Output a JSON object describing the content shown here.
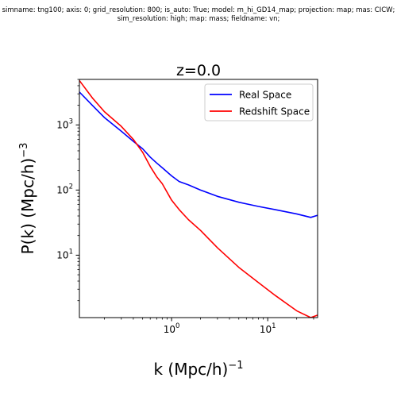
{
  "header": {
    "line1": "simname: tng100; axis: 0; grid_resolution: 800; is_auto: True; model: m_hi_GD14_map; projection: map; mas: CICW;",
    "line2": "sim_resolution: high; map: mass; fieldname: vn;"
  },
  "chart_data": {
    "type": "line",
    "title": "z=0.0",
    "xlabel": "k (Mpc/h)",
    "xlabel_exp": "−1",
    "ylabel": "P(k) (Mpc/h)",
    "ylabel_exp": "−3",
    "xscale": "log",
    "yscale": "log",
    "xlim": [
      0.11,
      33
    ],
    "ylim": [
      1.1,
      5000
    ],
    "xticks": [
      {
        "value": 1,
        "base": "10",
        "exp": "0"
      },
      {
        "value": 10,
        "base": "10",
        "exp": "1"
      }
    ],
    "yticks": [
      {
        "value": 10,
        "base": "10",
        "exp": "1"
      },
      {
        "value": 100,
        "base": "10",
        "exp": "2"
      },
      {
        "value": 1000,
        "base": "10",
        "exp": "3"
      }
    ],
    "legend_position": "top-right",
    "grid": false,
    "series": [
      {
        "name": "Real Space",
        "color": "#0000ff",
        "x": [
          0.11,
          0.15,
          0.2,
          0.3,
          0.4,
          0.5,
          0.6,
          0.7,
          0.8,
          1.0,
          1.2,
          1.5,
          2.0,
          3.0,
          5.0,
          8.0,
          12.0,
          20.0,
          28.0,
          33.0
        ],
        "y": [
          3200,
          2000,
          1300,
          800,
          560,
          430,
          320,
          260,
          220,
          165,
          135,
          120,
          100,
          80,
          65,
          56,
          50,
          43,
          38,
          41
        ]
      },
      {
        "name": "Redshift Space",
        "color": "#ff0000",
        "x": [
          0.11,
          0.15,
          0.2,
          0.3,
          0.4,
          0.5,
          0.6,
          0.7,
          0.8,
          1.0,
          1.2,
          1.5,
          2.0,
          3.0,
          5.0,
          8.0,
          12.0,
          20.0,
          28.0,
          33.0
        ],
        "y": [
          4800,
          2600,
          1600,
          950,
          600,
          380,
          230,
          160,
          125,
          70,
          50,
          35,
          24,
          13,
          6.5,
          3.8,
          2.4,
          1.4,
          1.1,
          1.2
        ]
      }
    ]
  }
}
